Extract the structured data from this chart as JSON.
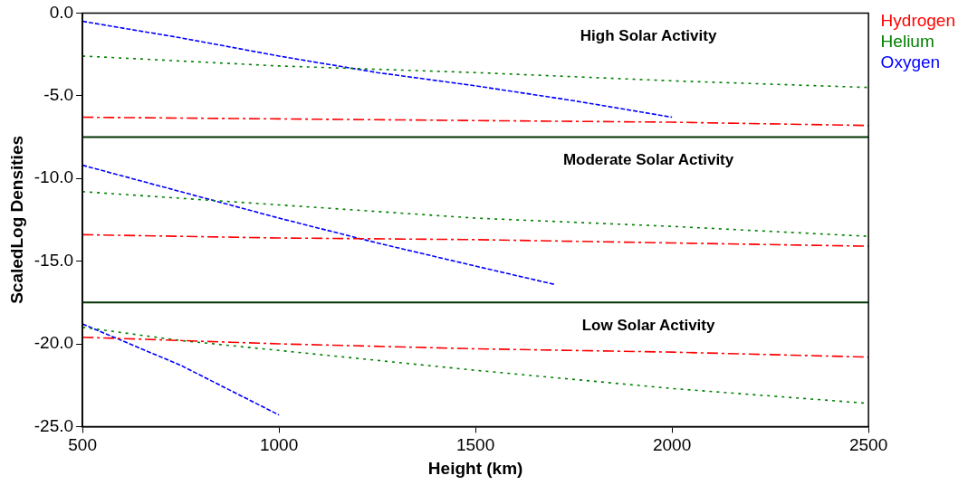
{
  "chart_data": {
    "type": "line",
    "xlabel": "Height (km)",
    "ylabel": "ScaledLog Densities",
    "xlim": [
      500,
      2500
    ],
    "xticks": [
      500,
      1000,
      1500,
      2000,
      2500
    ],
    "ylim": [
      -25,
      0
    ],
    "yticks": [
      {
        "value": -25,
        "label": "-25.0"
      },
      {
        "value": -20,
        "label": "-20.0"
      },
      {
        "value": -15,
        "label": "-15.0"
      },
      {
        "value": -10,
        "label": "-10.0"
      },
      {
        "value": -5,
        "label": "-5.0"
      },
      {
        "value": 0,
        "label": "0.0"
      }
    ],
    "legend": "top right",
    "marker": "none",
    "series": [
      {
        "name": "Hydrogen",
        "color": "#ff0000",
        "line_style": "dash-dot",
        "x": [
          500,
          1000,
          1500,
          2000,
          2500
        ],
        "values": [
          -6.3,
          -6.4,
          -6.5,
          -6.6,
          -6.8
        ]
      },
      {
        "name": "Helium",
        "color": "#008000",
        "line_style": "dotted",
        "x": [
          500,
          1000,
          1500,
          2000,
          2500
        ],
        "values": [
          -2.6,
          -3.2,
          -3.6,
          -4.1,
          -4.5
        ]
      },
      {
        "name": "Oxygen",
        "color": "#0000ff",
        "line_style": "dashed",
        "x": [
          500,
          750,
          1000,
          1250,
          1500,
          1750,
          2000
        ],
        "values": [
          -0.5,
          -1.5,
          -2.6,
          -3.6,
          -4.4,
          -5.3,
          -6.3
        ]
      },
      {
        "color": "#ff0000",
        "line_style": "dash-dot",
        "x": [
          500,
          1000,
          1500,
          2000,
          2500
        ],
        "values": [
          -13.4,
          -13.6,
          -13.7,
          -13.9,
          -14.1
        ]
      },
      {
        "color": "#008000",
        "line_style": "dotted",
        "x": [
          500,
          1000,
          1500,
          2000,
          2500
        ],
        "values": [
          -10.8,
          -11.6,
          -12.4,
          -12.9,
          -13.5
        ]
      },
      {
        "color": "#0000ff",
        "line_style": "dashed",
        "x": [
          500,
          750,
          1000,
          1250,
          1500,
          1700
        ],
        "values": [
          -9.2,
          -10.8,
          -12.4,
          -13.9,
          -15.3,
          -16.4
        ]
      },
      {
        "color": "#ff0000",
        "line_style": "dash-dot",
        "x": [
          500,
          1000,
          1500,
          2000,
          2500
        ],
        "values": [
          -19.6,
          -20.0,
          -20.3,
          -20.5,
          -20.8
        ]
      },
      {
        "color": "#008000",
        "line_style": "dotted",
        "x": [
          500,
          750,
          1000,
          1500,
          2000,
          2500
        ],
        "values": [
          -19.0,
          -19.8,
          -20.4,
          -21.6,
          -22.7,
          -23.6
        ]
      },
      {
        "color": "#0000ff",
        "line_style": "dashed",
        "x": [
          500,
          750,
          1000
        ],
        "values": [
          -18.8,
          -21.3,
          -24.3
        ]
      }
    ],
    "ref_lines": [
      {
        "axis": "y",
        "value": -7.5,
        "color": "#003300"
      },
      {
        "axis": "y",
        "value": -17.5,
        "color": "#003300"
      }
    ],
    "annotations": [
      "High Solar Activity",
      "Moderate Solar Activity",
      "Low Solar Activity"
    ]
  }
}
